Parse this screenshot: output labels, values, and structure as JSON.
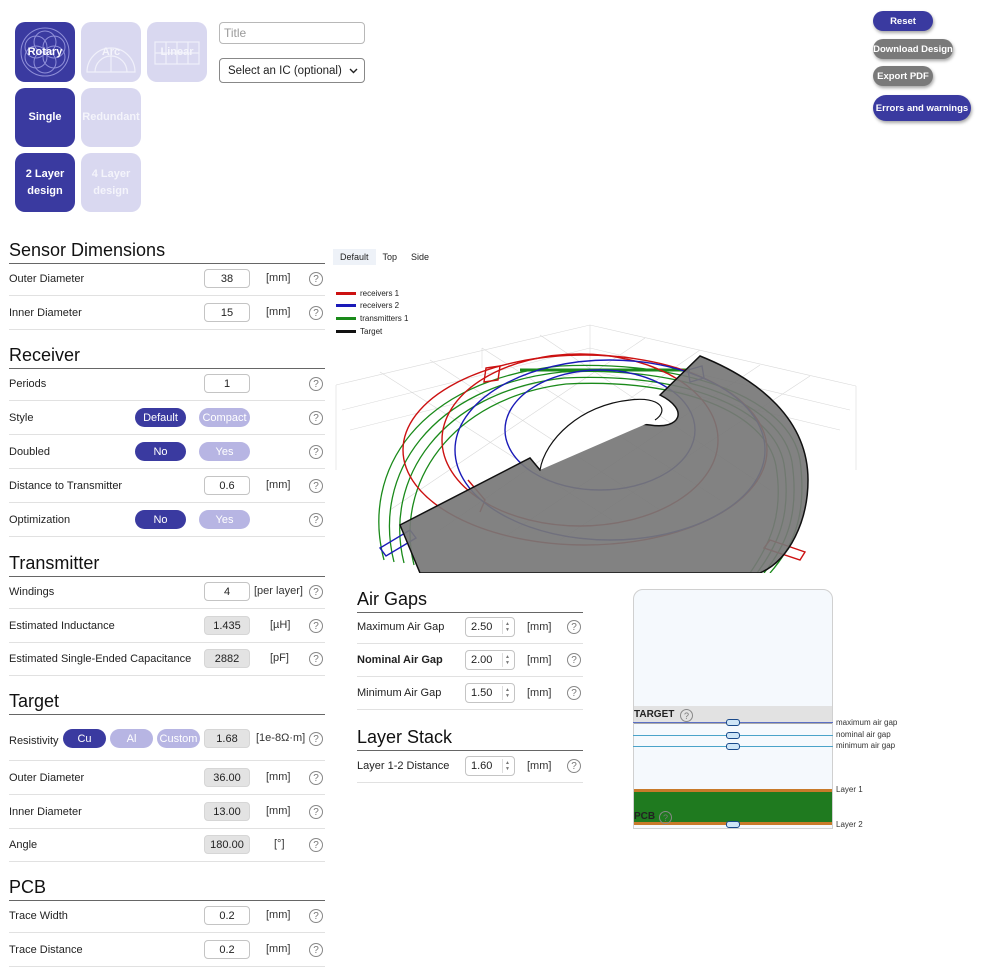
{
  "modes": {
    "rotary": "Rotary",
    "arc": "Arc",
    "linear": "Linear",
    "single": "Single",
    "redundant": "Redundant",
    "two_layer": [
      "2 Layer",
      "design"
    ],
    "four_layer": [
      "4 Layer",
      "design"
    ]
  },
  "title_input": {
    "placeholder": "Title"
  },
  "ic_select": {
    "selected": "Select an IC (optional)"
  },
  "actions": {
    "reset": "Reset",
    "download": "Download Design",
    "export": "Export PDF",
    "errors": "Errors and warnings"
  },
  "colors": {
    "accent": "#3a3aa0",
    "accent_light": "#b7b5e3",
    "grey_button": "#7a7a7a",
    "receivers1": "#cc1111",
    "receivers2": "#1a1ab8",
    "transmitters1": "#1a8a1a",
    "target": "#111111",
    "pcb": "#1f7a1f",
    "copper": "#c87a2a"
  },
  "sensor": {
    "title": "Sensor Dimensions",
    "outer_label": "Outer Diameter",
    "outer_value": "38",
    "outer_unit": "[mm]",
    "inner_label": "Inner Diameter",
    "inner_value": "15",
    "inner_unit": "[mm]"
  },
  "receiver": {
    "title": "Receiver",
    "periods_label": "Periods",
    "periods_value": "1",
    "style_label": "Style",
    "style_default": "Default",
    "style_compact": "Compact",
    "doubled_label": "Doubled",
    "no": "No",
    "yes": "Yes",
    "distance_label": "Distance to Transmitter",
    "distance_value": "0.6",
    "distance_unit": "[mm]",
    "optimization_label": "Optimization"
  },
  "transmitter": {
    "title": "Transmitter",
    "windings_label": "Windings",
    "windings_value": "4",
    "windings_unit": "[per layer]",
    "inductance_label": "Estimated Inductance",
    "inductance_value": "1.435",
    "inductance_unit": "[µH]",
    "capacitance_label": "Estimated Single-Ended Capacitance",
    "capacitance_value": "2882",
    "capacitance_unit": "[pF]"
  },
  "target": {
    "title": "Target",
    "resistivity_label": "Resistivity",
    "cu": "Cu",
    "al": "Al",
    "custom": "Custom",
    "resistivity_value": "1.68",
    "resistivity_unit": "[1e-8Ω·m]",
    "outer_label": "Outer Diameter",
    "outer_value": "36.00",
    "outer_unit": "[mm]",
    "inner_label": "Inner Diameter",
    "inner_value": "13.00",
    "inner_unit": "[mm]",
    "angle_label": "Angle",
    "angle_value": "180.00",
    "angle_unit": "[°]"
  },
  "pcb": {
    "title": "PCB",
    "trace_width_label": "Trace Width",
    "trace_width_value": "0.2",
    "trace_width_unit": "[mm]",
    "trace_distance_label": "Trace Distance",
    "trace_distance_value": "0.2",
    "trace_distance_unit": "[mm]"
  },
  "view_tabs": {
    "default": "Default",
    "top": "Top",
    "side": "Side"
  },
  "legend": {
    "r1": "receivers 1",
    "r2": "receivers 2",
    "t1": "transmitters 1",
    "target": "Target"
  },
  "air_gaps": {
    "title": "Air Gaps",
    "max_label": "Maximum Air Gap",
    "max_value": "2.50",
    "nom_label": "Nominal Air Gap",
    "nom_value": "2.00",
    "min_label": "Minimum Air Gap",
    "min_value": "1.50",
    "unit": "[mm]"
  },
  "layer_stack": {
    "title": "Layer Stack",
    "l12_label": "Layer 1-2 Distance",
    "l12_value": "1.60",
    "unit": "[mm]"
  },
  "stack_diagram": {
    "target_label": "TARGET",
    "pcb_label": "PCB",
    "max_gap": "maximum air gap",
    "nom_gap": "nominal air gap",
    "min_gap": "minimum air gap",
    "layer1": "Layer 1",
    "layer2": "Layer 2"
  }
}
